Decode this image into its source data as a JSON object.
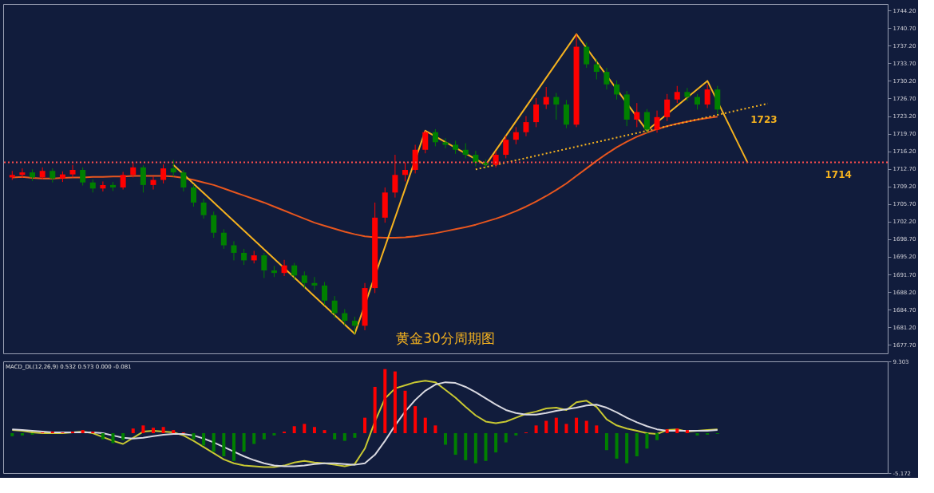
{
  "chart_data": [
    {
      "type": "candlestick",
      "categories": [
        null,
        null,
        null,
        null,
        null,
        null,
        null,
        null,
        null,
        null,
        null,
        null,
        null,
        null,
        null,
        null,
        null,
        null,
        null,
        null,
        null,
        null,
        null,
        null,
        null,
        null,
        null,
        null,
        null,
        null,
        null,
        null,
        null,
        null,
        null,
        null,
        null,
        null,
        null,
        null,
        null,
        null,
        null,
        null,
        null,
        null,
        null,
        null,
        null,
        null,
        null,
        null,
        null,
        null,
        null,
        null,
        null,
        null,
        null,
        null,
        null,
        null,
        null,
        null,
        null,
        null,
        null,
        null,
        null,
        null,
        null,
        null,
        null,
        null,
        null,
        null,
        null,
        null,
        null,
        null,
        null,
        null,
        null,
        null,
        null,
        null,
        null
      ],
      "ohlc": [
        [
          1711.0,
          1712.3,
          1710.5,
          1711.5
        ],
        [
          1711.5,
          1712.8,
          1710.9,
          1712.0
        ],
        [
          1712.0,
          1712.6,
          1710.3,
          1711.0
        ],
        [
          1711.0,
          1713.0,
          1710.6,
          1712.3
        ],
        [
          1712.3,
          1712.8,
          1710.0,
          1710.8
        ],
        [
          1710.8,
          1712.2,
          1710.1,
          1711.6
        ],
        [
          1711.6,
          1713.5,
          1711.0,
          1712.5
        ],
        [
          1712.5,
          1713.0,
          1709.4,
          1710.0
        ],
        [
          1710.0,
          1710.6,
          1708.0,
          1708.8
        ],
        [
          1708.8,
          1710.2,
          1708.2,
          1709.5
        ],
        [
          1709.5,
          1710.1,
          1708.3,
          1709.0
        ],
        [
          1709.0,
          1712.1,
          1708.6,
          1711.5
        ],
        [
          1711.5,
          1714.0,
          1711.0,
          1713.0
        ],
        [
          1713.0,
          1713.4,
          1708.0,
          1709.5
        ],
        [
          1709.5,
          1711.2,
          1708.6,
          1710.5
        ],
        [
          1710.5,
          1713.6,
          1709.8,
          1712.8
        ],
        [
          1712.8,
          1714.5,
          1711.2,
          1712.0
        ],
        [
          1712.0,
          1712.5,
          1708.2,
          1709.0
        ],
        [
          1709.0,
          1709.6,
          1705.2,
          1706.0
        ],
        [
          1706.0,
          1706.8,
          1702.8,
          1703.5
        ],
        [
          1703.5,
          1704.2,
          1699.0,
          1700.0
        ],
        [
          1700.0,
          1700.7,
          1696.8,
          1697.5
        ],
        [
          1697.5,
          1698.3,
          1694.5,
          1696.0
        ],
        [
          1696.0,
          1696.8,
          1693.6,
          1694.5
        ],
        [
          1694.5,
          1696.4,
          1693.9,
          1695.5
        ],
        [
          1695.5,
          1696.0,
          1691.0,
          1692.5
        ],
        [
          1692.5,
          1693.4,
          1691.2,
          1692.0
        ],
        [
          1692.0,
          1694.6,
          1691.4,
          1693.5
        ],
        [
          1693.5,
          1694.0,
          1690.6,
          1691.5
        ],
        [
          1691.5,
          1692.3,
          1689.0,
          1690.0
        ],
        [
          1690.0,
          1691.2,
          1688.6,
          1689.5
        ],
        [
          1689.5,
          1690.2,
          1685.6,
          1686.5
        ],
        [
          1686.5,
          1687.4,
          1683.0,
          1684.0
        ],
        [
          1684.0,
          1684.8,
          1681.6,
          1682.5
        ],
        [
          1682.5,
          1683.3,
          1679.9,
          1681.5
        ],
        [
          1681.5,
          1690.0,
          1680.6,
          1689.0
        ],
        [
          1689.0,
          1706.0,
          1688.0,
          1703.0
        ],
        [
          1703.0,
          1709.0,
          1702.0,
          1708.0
        ],
        [
          1708.0,
          1715.5,
          1707.0,
          1711.5
        ],
        [
          1711.5,
          1714.0,
          1710.2,
          1712.5
        ],
        [
          1712.5,
          1717.5,
          1711.8,
          1716.5
        ],
        [
          1716.5,
          1720.3,
          1715.8,
          1720.0
        ],
        [
          1720.0,
          1720.6,
          1717.2,
          1718.0
        ],
        [
          1718.0,
          1718.8,
          1716.8,
          1717.5
        ],
        [
          1717.5,
          1718.3,
          1715.7,
          1716.5
        ],
        [
          1716.5,
          1717.8,
          1714.8,
          1715.5
        ],
        [
          1715.5,
          1716.3,
          1713.2,
          1714.0
        ],
        [
          1714.0,
          1714.6,
          1712.8,
          1713.5
        ],
        [
          1713.5,
          1716.2,
          1713.0,
          1715.5
        ],
        [
          1715.5,
          1719.3,
          1714.8,
          1718.5
        ],
        [
          1718.5,
          1721.0,
          1717.6,
          1720.0
        ],
        [
          1720.0,
          1723.2,
          1719.2,
          1722.0
        ],
        [
          1722.0,
          1726.8,
          1721.0,
          1725.5
        ],
        [
          1725.5,
          1729.0,
          1724.6,
          1727.0
        ],
        [
          1727.0,
          1727.8,
          1722.5,
          1725.5
        ],
        [
          1725.5,
          1726.4,
          1720.8,
          1721.5
        ],
        [
          1721.5,
          1739.5,
          1721.0,
          1737.0
        ],
        [
          1737.0,
          1737.8,
          1732.8,
          1733.5
        ],
        [
          1733.5,
          1734.6,
          1730.5,
          1732.0
        ],
        [
          1732.0,
          1732.8,
          1728.5,
          1729.5
        ],
        [
          1729.5,
          1730.3,
          1726.5,
          1727.5
        ],
        [
          1727.5,
          1728.2,
          1721.2,
          1722.5
        ],
        [
          1722.5,
          1725.8,
          1721.0,
          1724.0
        ],
        [
          1724.0,
          1724.6,
          1719.8,
          1720.5
        ],
        [
          1720.5,
          1724.3,
          1719.9,
          1723.0
        ],
        [
          1723.0,
          1727.6,
          1722.2,
          1726.5
        ],
        [
          1726.5,
          1729.2,
          1725.8,
          1728.0
        ],
        [
          1728.0,
          1728.8,
          1726.2,
          1727.0
        ],
        [
          1727.0,
          1727.6,
          1724.5,
          1725.5
        ],
        [
          1725.5,
          1729.5,
          1724.8,
          1728.5
        ],
        [
          1728.5,
          1729.2,
          1723.6,
          1724.5
        ],
        null,
        null,
        null,
        null,
        null,
        null,
        null,
        null,
        null,
        null,
        null,
        null,
        null,
        null,
        null,
        null
      ],
      "colors": [
        "#ff0000",
        "#ff0000",
        "#008000",
        "#ff0000",
        "#008000",
        "#ff0000",
        "#ff0000",
        "#008000",
        "#008000",
        "#ff0000",
        "#008000",
        "#ff0000",
        "#ff0000",
        "#008000",
        "#ff0000",
        "#ff0000",
        "#008000",
        "#008000",
        "#008000",
        "#008000",
        "#008000",
        "#008000",
        "#008000",
        "#008000",
        "#ff0000",
        "#008000",
        "#008000",
        "#ff0000",
        "#008000",
        "#008000",
        "#008000",
        "#008000",
        "#008000",
        "#008000",
        "#008000",
        "#ff0000",
        "#ff0000",
        "#ff0000",
        "#ff0000",
        "#ff0000",
        "#ff0000",
        "#ff0000",
        "#008000",
        "#008000",
        "#008000",
        "#008000",
        "#008000",
        "#008000",
        "#ff0000",
        "#ff0000",
        "#ff0000",
        "#ff0000",
        "#ff0000",
        "#ff0000",
        "#008000",
        "#008000",
        "#ff0000",
        "#008000",
        "#008000",
        "#008000",
        "#008000",
        "#008000",
        "#ff0000",
        "#008000",
        "#ff0000",
        "#ff0000",
        "#ff0000",
        "#008000",
        "#008000",
        "#ff0000",
        "#008000",
        null,
        null,
        null,
        null,
        null,
        null,
        null,
        null,
        null,
        null,
        null,
        null,
        null,
        null,
        null,
        null
      ],
      "series": [
        {
          "type": "line",
          "color": "#e8561e",
          "line_style": "solid",
          "values": [
            1711.0,
            1711.1,
            1710.9,
            1710.8,
            1710.8,
            1710.9,
            1711.0,
            1711.0,
            1711.1,
            1711.1,
            1711.2,
            1711.2,
            1711.3,
            1711.3,
            1711.3,
            1711.3,
            1711.2,
            1710.9,
            1710.5,
            1710.0,
            1709.5,
            1708.8,
            1708.1,
            1707.4,
            1706.7,
            1706.0,
            1705.2,
            1704.4,
            1703.6,
            1702.8,
            1702.0,
            1701.4,
            1700.8,
            1700.2,
            1699.7,
            1699.3,
            1699.1,
            1699.0,
            1699.0,
            1699.1,
            1699.3,
            1699.6,
            1699.9,
            1700.3,
            1700.7,
            1701.1,
            1701.6,
            1702.2,
            1702.8,
            1703.5,
            1704.3,
            1705.2,
            1706.2,
            1707.3,
            1708.5,
            1709.8,
            1711.3,
            1712.8,
            1714.3,
            1715.7,
            1717.0,
            1718.1,
            1719.1,
            1719.9,
            1720.6,
            1721.2,
            1721.7,
            1722.1,
            1722.5,
            1722.8,
            1723.1,
            null,
            null,
            null,
            null,
            null,
            null,
            null,
            null,
            null,
            null,
            null,
            null,
            null,
            null,
            null,
            null
          ]
        },
        {
          "type": "line",
          "color": "#f5b21f",
          "line_style": "solid",
          "values": [
            null,
            null,
            null,
            null,
            null,
            null,
            null,
            null,
            null,
            null,
            null,
            null,
            null,
            null,
            null,
            null,
            1713.5,
            null,
            null,
            null,
            null,
            null,
            null,
            null,
            null,
            null,
            null,
            null,
            null,
            null,
            null,
            null,
            null,
            null,
            1679.9,
            null,
            null,
            null,
            null,
            null,
            null,
            1720.3,
            null,
            null,
            null,
            null,
            null,
            1713.5,
            null,
            null,
            null,
            null,
            null,
            null,
            null,
            null,
            1739.5,
            null,
            null,
            null,
            null,
            null,
            null,
            1720.3,
            null,
            null,
            null,
            null,
            null,
            1730.2,
            null,
            null,
            null,
            1713.9,
            null,
            null,
            null,
            null,
            null,
            null,
            null,
            null,
            null,
            null,
            null,
            null,
            null
          ]
        },
        {
          "type": "line",
          "color": "#f5b21f",
          "line_style": "dotted",
          "values": [
            null,
            null,
            null,
            null,
            null,
            null,
            null,
            null,
            null,
            null,
            null,
            null,
            null,
            null,
            null,
            null,
            null,
            null,
            null,
            null,
            null,
            null,
            null,
            null,
            null,
            null,
            null,
            null,
            null,
            null,
            null,
            null,
            null,
            null,
            null,
            null,
            null,
            null,
            null,
            null,
            null,
            null,
            null,
            null,
            null,
            null,
            1712.6,
            null,
            null,
            null,
            null,
            null,
            null,
            null,
            null,
            null,
            null,
            null,
            null,
            null,
            null,
            null,
            null,
            null,
            null,
            null,
            null,
            null,
            null,
            null,
            null,
            null,
            null,
            null,
            null,
            1725.7,
            null,
            null,
            null,
            null,
            null,
            null,
            null,
            null,
            null,
            null,
            null
          ]
        }
      ],
      "ylim": [
        1676.0,
        1745.5
      ],
      "yticks": [
        {
          "value": 1744.2,
          "label": "1744.20"
        },
        {
          "value": 1740.7,
          "label": "1740.70"
        },
        {
          "value": 1737.2,
          "label": "1737.20"
        },
        {
          "value": 1733.7,
          "label": "1733.70"
        },
        {
          "value": 1730.2,
          "label": "1730.20"
        },
        {
          "value": 1726.7,
          "label": "1726.70"
        },
        {
          "value": 1723.2,
          "label": "1723.20"
        },
        {
          "value": 1719.7,
          "label": "1719.70"
        },
        {
          "value": 1716.2,
          "label": "1716.20"
        },
        {
          "value": 1712.7,
          "label": "1712.70"
        },
        {
          "value": 1709.2,
          "label": "1709.20"
        },
        {
          "value": 1705.7,
          "label": "1705.70"
        },
        {
          "value": 1702.2,
          "label": "1702.20"
        },
        {
          "value": 1698.7,
          "label": "1698.70"
        },
        {
          "value": 1695.2,
          "label": "1695.20"
        },
        {
          "value": 1691.7,
          "label": "1691.70"
        },
        {
          "value": 1688.2,
          "label": "1688.20"
        },
        {
          "value": 1684.7,
          "label": "1684.70"
        },
        {
          "value": 1681.2,
          "label": "1681.20"
        },
        {
          "value": 1677.7,
          "label": "1677.70"
        }
      ],
      "ref_lines": [
        {
          "axis": "y",
          "value": 1714,
          "label": "1714",
          "color": "#ff4d4d",
          "line_style": "dotted"
        }
      ],
      "annotations": [
        "1723",
        "黄金30分周期图"
      ],
      "tick_labels": "y",
      "grid": false
    },
    {
      "type": "bar",
      "title": "MACD_DL(12,26,9) 0.532 0.573 0.000 -0.081",
      "categories": [
        null,
        null,
        null,
        null,
        null,
        null,
        null,
        null,
        null,
        null,
        null,
        null,
        null,
        null,
        null,
        null,
        null,
        null,
        null,
        null,
        null,
        null,
        null,
        null,
        null,
        null,
        null,
        null,
        null,
        null,
        null,
        null,
        null,
        null,
        null,
        null,
        null,
        null,
        null,
        null,
        null,
        null,
        null,
        null,
        null,
        null,
        null,
        null,
        null,
        null,
        null,
        null,
        null,
        null,
        null,
        null,
        null,
        null,
        null,
        null,
        null,
        null,
        null,
        null,
        null,
        null,
        null,
        null,
        null,
        null,
        null,
        null,
        null,
        null,
        null,
        null,
        null,
        null,
        null,
        null,
        null,
        null,
        null,
        null,
        null,
        null,
        null
      ],
      "values": [
        -0.4,
        -0.3,
        -0.2,
        0.1,
        0.2,
        0.1,
        0.2,
        0.4,
        0.2,
        -0.8,
        -1.3,
        -0.9,
        0.6,
        1.0,
        0.7,
        0.8,
        0.4,
        0.1,
        -0.8,
        -1.6,
        -2.4,
        -3.0,
        -3.6,
        -2.4,
        -1.4,
        -0.8,
        -0.3,
        0.2,
        0.9,
        1.2,
        0.8,
        0.4,
        -0.8,
        -1.0,
        -0.6,
        2.0,
        6.0,
        8.3,
        8.0,
        5.5,
        3.5,
        2.0,
        1.0,
        -1.5,
        -2.8,
        -3.5,
        -3.9,
        -3.6,
        -2.5,
        -1.2,
        -0.3,
        0.1,
        1.0,
        1.6,
        2.0,
        1.2,
        2.0,
        1.6,
        1.0,
        -2.2,
        -3.3,
        -3.9,
        -3.0,
        -2.0,
        -0.9,
        0.5,
        0.6,
        0.4,
        -0.3,
        -0.2,
        -0.1,
        null,
        null,
        null,
        null,
        null,
        null,
        null,
        null,
        null,
        null,
        null,
        null,
        null,
        null,
        null,
        null
      ],
      "colors": [
        "#008000",
        "#008000",
        "#008000",
        "#ff0000",
        "#ff0000",
        "#ff0000",
        "#ff0000",
        "#ff0000",
        "#ff0000",
        "#008000",
        "#008000",
        "#008000",
        "#ff0000",
        "#ff0000",
        "#ff0000",
        "#ff0000",
        "#ff0000",
        "#ff0000",
        "#008000",
        "#008000",
        "#008000",
        "#008000",
        "#008000",
        "#008000",
        "#008000",
        "#008000",
        "#008000",
        "#ff0000",
        "#ff0000",
        "#ff0000",
        "#ff0000",
        "#ff0000",
        "#008000",
        "#008000",
        "#008000",
        "#ff0000",
        "#ff0000",
        "#ff0000",
        "#ff0000",
        "#ff0000",
        "#ff0000",
        "#ff0000",
        "#ff0000",
        "#008000",
        "#008000",
        "#008000",
        "#008000",
        "#008000",
        "#008000",
        "#008000",
        "#008000",
        "#ff0000",
        "#ff0000",
        "#ff0000",
        "#ff0000",
        "#ff0000",
        "#ff0000",
        "#ff0000",
        "#ff0000",
        "#008000",
        "#008000",
        "#008000",
        "#008000",
        "#008000",
        "#008000",
        "#ff0000",
        "#ff0000",
        "#ff0000",
        "#008000",
        "#008000",
        "#008000",
        null,
        null,
        null,
        null,
        null,
        null,
        null,
        null,
        null,
        null,
        null,
        null,
        null,
        null,
        null,
        null
      ],
      "series": [
        {
          "type": "line",
          "color": "#c8c832",
          "line_style": "solid",
          "values": [
            0.4,
            0.3,
            0.1,
            0,
            0,
            0,
            0.1,
            0.2,
            0,
            -0.5,
            -1.0,
            -1.4,
            -0.6,
            0.2,
            0.3,
            0.2,
            0.1,
            -0.3,
            -1.0,
            -1.8,
            -2.6,
            -3.4,
            -3.9,
            -4.2,
            -4.3,
            -4.4,
            -4.4,
            -4.2,
            -3.8,
            -3.6,
            -3.8,
            -3.9,
            -4.1,
            -4.3,
            -4.0,
            -2.0,
            1.5,
            4.5,
            5.8,
            6.2,
            6.6,
            6.8,
            6.6,
            5.6,
            4.6,
            3.4,
            2.3,
            1.5,
            1.3,
            1.5,
            2.0,
            2.5,
            2.8,
            3.2,
            3.3,
            3.0,
            4.0,
            4.2,
            3.4,
            1.8,
            1.0,
            0.6,
            0.3,
            0.0,
            -0.1,
            0.4,
            0.5,
            0.2,
            0.3,
            0.4,
            0.5,
            null,
            null,
            null,
            null,
            null,
            null,
            null,
            null,
            null,
            null,
            null,
            null,
            null,
            null,
            null,
            null
          ]
        },
        {
          "type": "line",
          "color": "#d8d8e0",
          "line_style": "solid",
          "values": [
            0.5,
            0.4,
            0.3,
            0.2,
            0.1,
            0.1,
            0.1,
            0.1,
            0.1,
            0,
            -0.3,
            -0.6,
            -0.7,
            -0.6,
            -0.4,
            -0.2,
            -0.1,
            -0.1,
            -0.3,
            -0.7,
            -1.2,
            -1.8,
            -2.4,
            -3.0,
            -3.5,
            -3.9,
            -4.2,
            -4.3,
            -4.3,
            -4.2,
            -4.0,
            -3.9,
            -3.9,
            -4.0,
            -4.1,
            -3.9,
            -2.8,
            -1.0,
            1.0,
            2.8,
            4.3,
            5.5,
            6.3,
            6.6,
            6.5,
            6.0,
            5.3,
            4.5,
            3.7,
            3.0,
            2.6,
            2.4,
            2.4,
            2.6,
            2.9,
            3.1,
            3.3,
            3.6,
            3.7,
            3.3,
            2.7,
            2.0,
            1.4,
            0.9,
            0.5,
            0.3,
            0.3,
            0.3,
            0.3,
            0.3,
            0.4,
            null,
            null,
            null,
            null,
            null,
            null,
            null,
            null,
            null,
            null,
            null,
            null,
            null,
            null,
            null,
            null
          ]
        }
      ],
      "ylim": [
        -5.172,
        9.303
      ],
      "yticks": [
        {
          "value": 9.303,
          "label": "9.303"
        },
        {
          "value": -5.172,
          "label": "-5.172"
        }
      ],
      "tick_labels": "y",
      "grid": false
    }
  ]
}
